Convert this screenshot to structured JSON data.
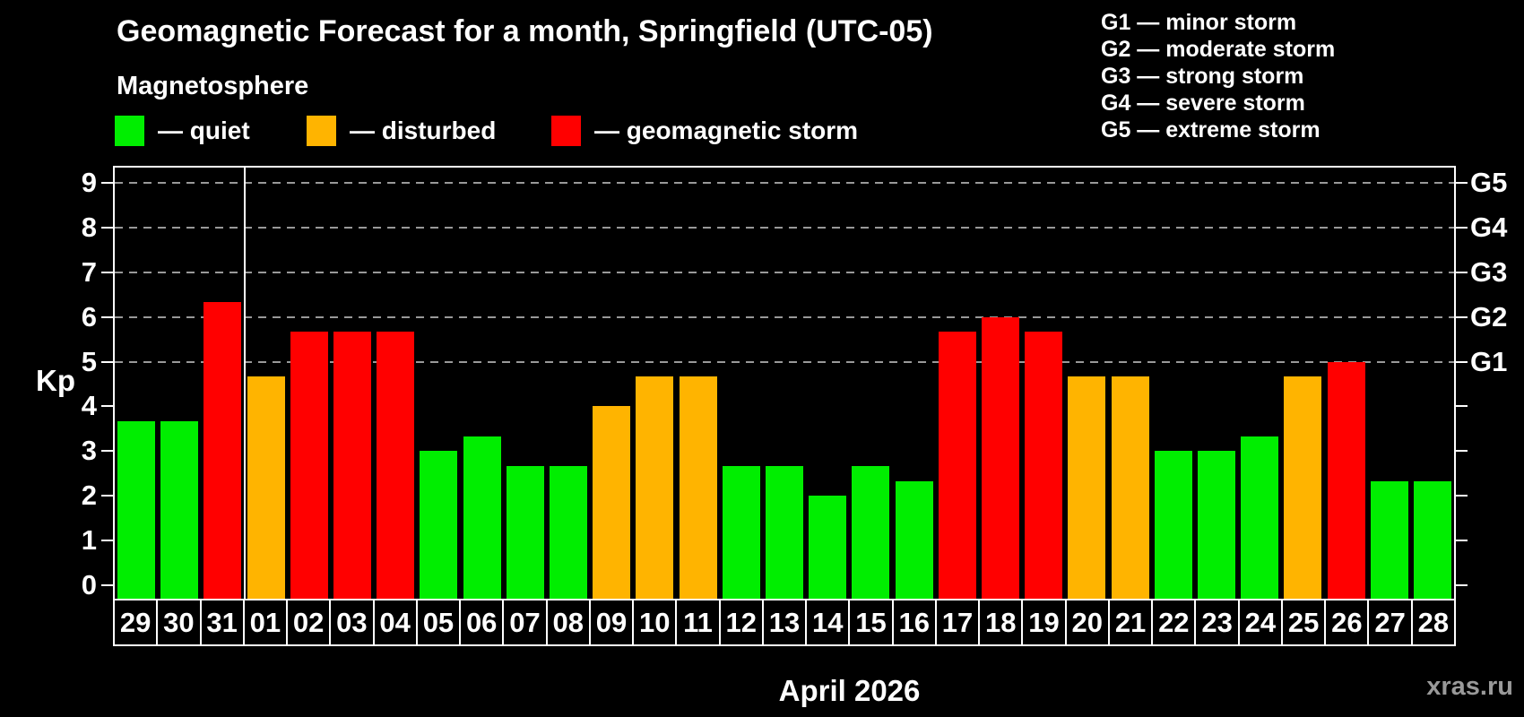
{
  "header": {
    "title": "Geomagnetic Forecast for a month, Springfield (UTC-05)",
    "subtitle": "Magnetosphere"
  },
  "magnetosphere_legend": [
    {
      "name": "quiet",
      "label": "— quiet",
      "color": "#00ee00",
      "x": 128
    },
    {
      "name": "disturbed",
      "label": "— disturbed",
      "color": "#ffb400",
      "x": 342
    },
    {
      "name": "storm",
      "label": "— geomagnetic storm",
      "color": "#ff0000",
      "x": 615
    }
  ],
  "storm_scale_legend": [
    {
      "level": "G1",
      "label": "G1 — minor storm"
    },
    {
      "level": "G2",
      "label": "G2 — moderate storm"
    },
    {
      "level": "G3",
      "label": "G3 — strong storm"
    },
    {
      "level": "G4",
      "label": "G4 — severe storm"
    },
    {
      "level": "G5",
      "label": "G5 — extreme storm"
    }
  ],
  "chart_data": {
    "type": "bar",
    "title": "Geomagnetic Forecast for a month, Springfield (UTC-05)",
    "ylabel": "Kp",
    "xlabel": "April 2026",
    "ylim": [
      0,
      9
    ],
    "yticks": [
      0,
      1,
      2,
      3,
      4,
      5,
      6,
      7,
      8,
      9
    ],
    "grid": "horizontal dashed gridlines at Kp 5,6,7,8,9 only",
    "grid_color": "#999999",
    "right_axis": [
      {
        "label": "G1",
        "kp": 5
      },
      {
        "label": "G2",
        "kp": 6
      },
      {
        "label": "G3",
        "kp": 7
      },
      {
        "label": "G4",
        "kp": 8
      },
      {
        "label": "G5",
        "kp": 9
      }
    ],
    "status_colors": {
      "quiet": "#00ee00",
      "disturbed": "#ffb400",
      "storm": "#ff0000"
    },
    "month_separator_before_day": "01",
    "days": [
      {
        "day": "29",
        "kp": 3.67,
        "status": "quiet"
      },
      {
        "day": "30",
        "kp": 3.67,
        "status": "quiet"
      },
      {
        "day": "31",
        "kp": 6.33,
        "status": "storm"
      },
      {
        "day": "01",
        "kp": 4.67,
        "status": "disturbed"
      },
      {
        "day": "02",
        "kp": 5.67,
        "status": "storm"
      },
      {
        "day": "03",
        "kp": 5.67,
        "status": "storm"
      },
      {
        "day": "04",
        "kp": 5.67,
        "status": "storm"
      },
      {
        "day": "05",
        "kp": 3.0,
        "status": "quiet"
      },
      {
        "day": "06",
        "kp": 3.33,
        "status": "quiet"
      },
      {
        "day": "07",
        "kp": 2.67,
        "status": "quiet"
      },
      {
        "day": "08",
        "kp": 2.67,
        "status": "quiet"
      },
      {
        "day": "09",
        "kp": 4.0,
        "status": "disturbed"
      },
      {
        "day": "10",
        "kp": 4.67,
        "status": "disturbed"
      },
      {
        "day": "11",
        "kp": 4.67,
        "status": "disturbed"
      },
      {
        "day": "12",
        "kp": 2.67,
        "status": "quiet"
      },
      {
        "day": "13",
        "kp": 2.67,
        "status": "quiet"
      },
      {
        "day": "14",
        "kp": 2.0,
        "status": "quiet"
      },
      {
        "day": "15",
        "kp": 2.67,
        "status": "quiet"
      },
      {
        "day": "16",
        "kp": 2.33,
        "status": "quiet"
      },
      {
        "day": "17",
        "kp": 5.67,
        "status": "storm"
      },
      {
        "day": "18",
        "kp": 6.0,
        "status": "storm"
      },
      {
        "day": "19",
        "kp": 5.67,
        "status": "storm"
      },
      {
        "day": "20",
        "kp": 4.67,
        "status": "disturbed"
      },
      {
        "day": "21",
        "kp": 4.67,
        "status": "disturbed"
      },
      {
        "day": "22",
        "kp": 3.0,
        "status": "quiet"
      },
      {
        "day": "23",
        "kp": 3.0,
        "status": "quiet"
      },
      {
        "day": "24",
        "kp": 3.33,
        "status": "quiet"
      },
      {
        "day": "25",
        "kp": 4.67,
        "status": "disturbed"
      },
      {
        "day": "26",
        "kp": 5.0,
        "status": "storm"
      },
      {
        "day": "27",
        "kp": 2.33,
        "status": "quiet"
      },
      {
        "day": "28",
        "kp": 2.33,
        "status": "quiet"
      }
    ]
  },
  "footer": {
    "month_label": "April 2026",
    "watermark": "xras.ru"
  }
}
